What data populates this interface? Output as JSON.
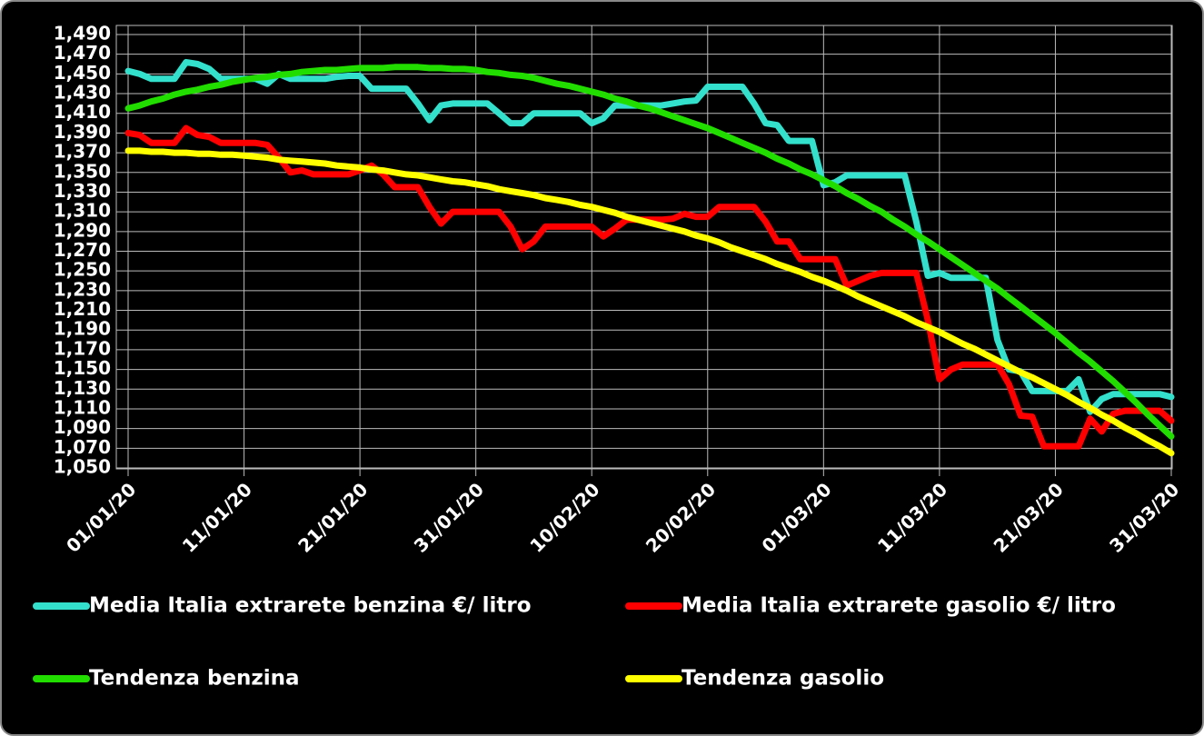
{
  "chart_data": {
    "type": "line",
    "legend": "bottom",
    "grid": true,
    "categories": [
      "01/01/20",
      null,
      null,
      null,
      null,
      null,
      null,
      null,
      null,
      null,
      "11/01/20",
      null,
      null,
      null,
      null,
      null,
      null,
      null,
      null,
      null,
      "21/01/20",
      null,
      null,
      null,
      null,
      null,
      null,
      null,
      null,
      null,
      "31/01/20",
      null,
      null,
      null,
      null,
      null,
      null,
      null,
      null,
      null,
      "10/02/20",
      null,
      null,
      null,
      null,
      null,
      null,
      null,
      null,
      null,
      "20/02/20",
      null,
      null,
      null,
      null,
      null,
      null,
      null,
      null,
      null,
      "01/03/20",
      null,
      null,
      null,
      null,
      null,
      null,
      null,
      null,
      null,
      "11/03/20",
      null,
      null,
      null,
      null,
      null,
      null,
      null,
      null,
      null,
      "21/03/20",
      null,
      null,
      null,
      null,
      null,
      null,
      null,
      null,
      null,
      "31/03/20"
    ],
    "ylim": [
      1.05,
      1.49
    ],
    "yticks": [
      {
        "value": 1.05,
        "label": "1,050"
      },
      {
        "value": 1.07,
        "label": "1,070"
      },
      {
        "value": 1.09,
        "label": "1,090"
      },
      {
        "value": 1.11,
        "label": "1,110"
      },
      {
        "value": 1.13,
        "label": "1,130"
      },
      {
        "value": 1.15,
        "label": "1,150"
      },
      {
        "value": 1.17,
        "label": "1,170"
      },
      {
        "value": 1.19,
        "label": "1,190"
      },
      {
        "value": 1.21,
        "label": "1,210"
      },
      {
        "value": 1.23,
        "label": "1,230"
      },
      {
        "value": 1.25,
        "label": "1,250"
      },
      {
        "value": 1.27,
        "label": "1,270"
      },
      {
        "value": 1.29,
        "label": "1,290"
      },
      {
        "value": 1.31,
        "label": "1,310"
      },
      {
        "value": 1.33,
        "label": "1,330"
      },
      {
        "value": 1.35,
        "label": "1,350"
      },
      {
        "value": 1.37,
        "label": "1,370"
      },
      {
        "value": 1.39,
        "label": "1,390"
      },
      {
        "value": 1.41,
        "label": "1,410"
      },
      {
        "value": 1.43,
        "label": "1,430"
      },
      {
        "value": 1.45,
        "label": "1,450"
      },
      {
        "value": 1.47,
        "label": "1,470"
      },
      {
        "value": 1.49,
        "label": "1,490"
      }
    ],
    "series": [
      {
        "name": "Media Italia extrarete benzina €/ litro",
        "color": "#33e0cc",
        "values": [
          1.453,
          1.45,
          1.445,
          1.445,
          1.445,
          1.462,
          1.46,
          1.455,
          1.445,
          1.445,
          1.445,
          1.445,
          1.44,
          1.45,
          1.445,
          1.445,
          1.445,
          1.445,
          1.447,
          1.448,
          1.448,
          1.435,
          1.435,
          1.435,
          1.435,
          1.42,
          1.403,
          1.418,
          1.42,
          1.42,
          1.42,
          1.42,
          1.41,
          1.4,
          1.4,
          1.41,
          1.41,
          1.41,
          1.41,
          1.41,
          1.4,
          1.405,
          1.418,
          1.418,
          1.418,
          1.418,
          1.418,
          1.42,
          1.422,
          1.423,
          1.437,
          1.437,
          1.437,
          1.437,
          1.42,
          1.4,
          1.398,
          1.382,
          1.382,
          1.382,
          1.337,
          1.34,
          1.347,
          1.347,
          1.347,
          1.347,
          1.347,
          1.347,
          1.3,
          1.245,
          1.248,
          1.243,
          1.243,
          1.243,
          1.243,
          1.18,
          1.15,
          1.148,
          1.128,
          1.128,
          1.128,
          1.128,
          1.14,
          1.107,
          1.12,
          1.125,
          1.125,
          1.125,
          1.125,
          1.125,
          1.122
        ]
      },
      {
        "name": "Media Italia extrarete gasolio €/ litro",
        "color": "#ff0000",
        "values": [
          1.39,
          1.388,
          1.38,
          1.38,
          1.38,
          1.395,
          1.388,
          1.386,
          1.38,
          1.38,
          1.38,
          1.38,
          1.378,
          1.365,
          1.35,
          1.352,
          1.348,
          1.348,
          1.348,
          1.348,
          1.352,
          1.357,
          1.348,
          1.335,
          1.335,
          1.335,
          1.315,
          1.298,
          1.31,
          1.31,
          1.31,
          1.31,
          1.31,
          1.295,
          1.272,
          1.28,
          1.295,
          1.295,
          1.295,
          1.295,
          1.295,
          1.285,
          1.293,
          1.302,
          1.302,
          1.302,
          1.302,
          1.303,
          1.308,
          1.305,
          1.305,
          1.315,
          1.315,
          1.315,
          1.315,
          1.3,
          1.28,
          1.28,
          1.262,
          1.262,
          1.262,
          1.262,
          1.235,
          1.24,
          1.245,
          1.248,
          1.248,
          1.248,
          1.248,
          1.2,
          1.14,
          1.15,
          1.155,
          1.155,
          1.155,
          1.155,
          1.135,
          1.103,
          1.102,
          1.072,
          1.072,
          1.072,
          1.072,
          1.1,
          1.087,
          1.105,
          1.108,
          1.108,
          1.108,
          1.108,
          1.098
        ]
      },
      {
        "name": "Tendenza benzina",
        "color": "#22dd00",
        "values": [
          1.415,
          1.418,
          1.422,
          1.425,
          1.429,
          1.432,
          1.434,
          1.437,
          1.439,
          1.442,
          1.444,
          1.446,
          1.447,
          1.449,
          1.45,
          1.452,
          1.453,
          1.454,
          1.454,
          1.455,
          1.456,
          1.456,
          1.456,
          1.457,
          1.457,
          1.457,
          1.456,
          1.456,
          1.455,
          1.455,
          1.454,
          1.452,
          1.451,
          1.449,
          1.448,
          1.446,
          1.443,
          1.44,
          1.438,
          1.435,
          1.432,
          1.429,
          1.425,
          1.422,
          1.418,
          1.415,
          1.411,
          1.407,
          1.403,
          1.399,
          1.395,
          1.39,
          1.385,
          1.38,
          1.375,
          1.37,
          1.364,
          1.359,
          1.353,
          1.348,
          1.342,
          1.336,
          1.329,
          1.323,
          1.316,
          1.31,
          1.302,
          1.295,
          1.287,
          1.28,
          1.272,
          1.264,
          1.256,
          1.248,
          1.24,
          1.232,
          1.223,
          1.214,
          1.205,
          1.196,
          1.187,
          1.177,
          1.167,
          1.158,
          1.148,
          1.138,
          1.127,
          1.116,
          1.104,
          1.093,
          1.082
        ]
      },
      {
        "name": "Tendenza gasolio",
        "color": "#ffff00",
        "values": [
          1.372,
          1.372,
          1.371,
          1.371,
          1.37,
          1.37,
          1.369,
          1.369,
          1.368,
          1.368,
          1.367,
          1.366,
          1.365,
          1.363,
          1.362,
          1.361,
          1.36,
          1.359,
          1.357,
          1.356,
          1.355,
          1.353,
          1.352,
          1.35,
          1.348,
          1.347,
          1.345,
          1.343,
          1.341,
          1.34,
          1.338,
          1.336,
          1.333,
          1.331,
          1.329,
          1.327,
          1.324,
          1.322,
          1.32,
          1.317,
          1.315,
          1.312,
          1.309,
          1.305,
          1.302,
          1.299,
          1.296,
          1.293,
          1.29,
          1.286,
          1.283,
          1.279,
          1.274,
          1.27,
          1.266,
          1.262,
          1.257,
          1.253,
          1.249,
          1.244,
          1.24,
          1.235,
          1.23,
          1.224,
          1.219,
          1.214,
          1.209,
          1.204,
          1.198,
          1.193,
          1.188,
          1.182,
          1.176,
          1.171,
          1.165,
          1.159,
          1.153,
          1.147,
          1.142,
          1.136,
          1.13,
          1.124,
          1.117,
          1.111,
          1.104,
          1.098,
          1.091,
          1.085,
          1.078,
          1.072,
          1.065
        ]
      }
    ]
  }
}
